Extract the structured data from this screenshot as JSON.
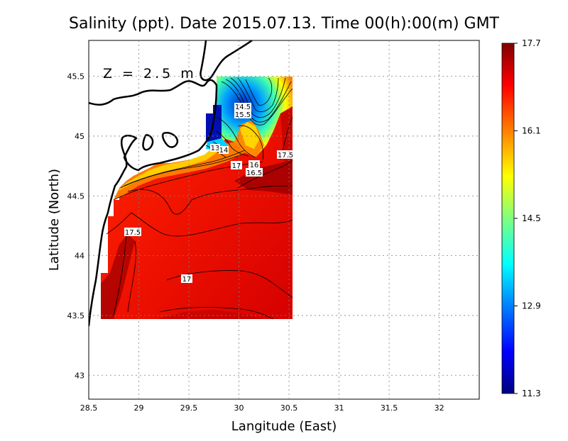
{
  "title": "Salinity (ppt). Date 2015.07.13. Time 00(h):00(m) GMT",
  "depth_label": "Z = 2.5 m",
  "xlabel": "Langitude (East)",
  "ylabel": "Latitude (North)",
  "chart_data": {
    "type": "heatmap",
    "variable": "Salinity (ppt)",
    "x_ticks": [
      "28.5",
      "29",
      "29.5",
      "30",
      "30.5",
      "31",
      "31.5",
      "32"
    ],
    "y_ticks": [
      "43",
      "43.5",
      "44",
      "44.5",
      "45",
      "45.5"
    ],
    "xlim": [
      28.5,
      32.4
    ],
    "ylim": [
      42.8,
      45.8
    ],
    "grid": true,
    "colorbar": {
      "min": 11.3,
      "max": 17.7,
      "tick_labels": [
        "17.7",
        "16.1",
        "14.5",
        "12.9",
        "11.3"
      ],
      "tick_values": [
        17.7,
        16.1,
        14.5,
        12.9,
        11.3
      ],
      "colors": [
        "#000080",
        "#0000ff",
        "#0080ff",
        "#00ffff",
        "#80ff80",
        "#ffff00",
        "#ff8000",
        "#ff0000",
        "#800000"
      ]
    },
    "contour_labels": [
      {
        "text": "17.5",
        "lon": 28.92,
        "lat": 44.2
      },
      {
        "text": "17",
        "lon": 29.52,
        "lat": 43.8
      },
      {
        "text": "17",
        "lon": 29.97,
        "lat": 44.76
      },
      {
        "text": "16",
        "lon": 30.12,
        "lat": 44.77
      },
      {
        "text": "16.5",
        "lon": 30.12,
        "lat": 44.7
      },
      {
        "text": "17.5",
        "lon": 30.45,
        "lat": 44.85
      },
      {
        "text": "14.5",
        "lon": 30.02,
        "lat": 45.23
      },
      {
        "text": "15.5",
        "lon": 30.02,
        "lat": 45.17
      },
      {
        "text": "13",
        "lon": 29.73,
        "lat": 44.93
      },
      {
        "text": "14",
        "lon": 29.82,
        "lat": 44.91
      }
    ]
  }
}
